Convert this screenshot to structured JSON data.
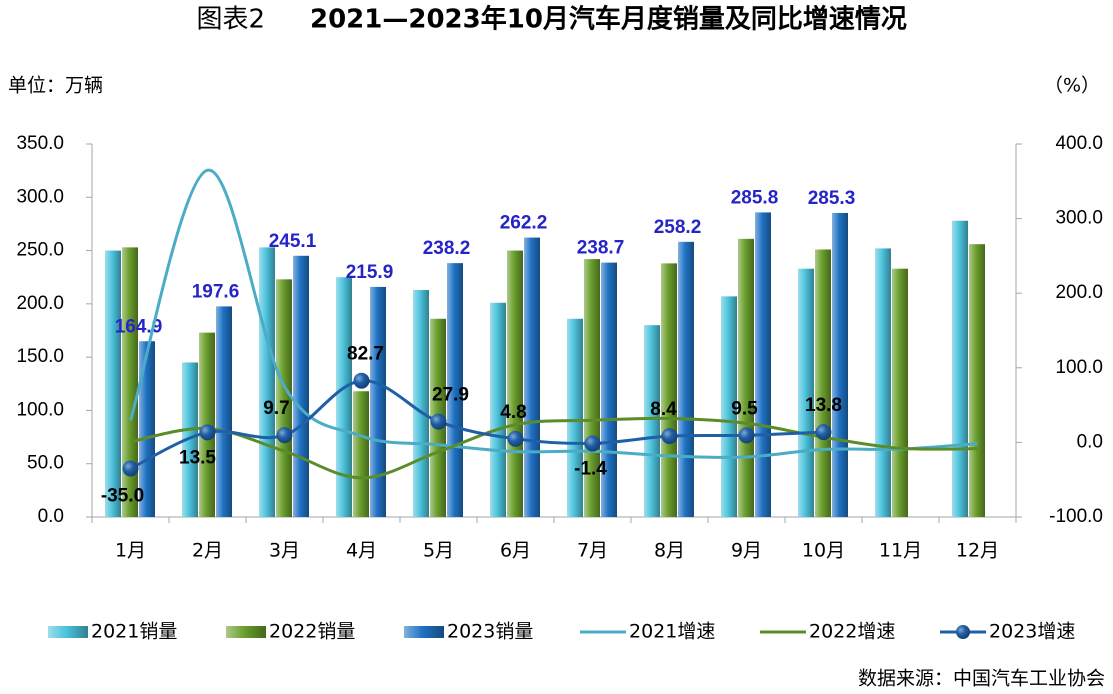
{
  "chart_data": {
    "type": "bar",
    "figure_label": "图表2",
    "title": "2021—2023年10月汽车月度销量及同比增速情况",
    "unit_left": "单位：万辆",
    "unit_right": "（%）",
    "source": "数据来源：中国汽车工业协会",
    "categories": [
      "1月",
      "2月",
      "3月",
      "4月",
      "5月",
      "6月",
      "7月",
      "8月",
      "9月",
      "10月",
      "11月",
      "12月"
    ],
    "series": [
      {
        "name": "2021销量",
        "type": "bar",
        "color": "#4cc3dc",
        "values": [
          250,
          145,
          253,
          225,
          213,
          201,
          186,
          180,
          207,
          233,
          252,
          278
        ]
      },
      {
        "name": "2022销量",
        "type": "bar",
        "color": "#6a9e2c",
        "values": [
          253,
          173,
          223,
          118,
          186,
          250,
          242,
          238,
          261,
          251,
          233,
          256
        ]
      },
      {
        "name": "2023销量",
        "type": "bar",
        "color": "#1f72c4",
        "values": [
          164.9,
          197.6,
          245.1,
          215.9,
          238.2,
          262.2,
          238.7,
          258.2,
          285.8,
          285.3,
          null,
          null
        ]
      },
      {
        "name": "2021增速",
        "type": "line",
        "axis": "y2",
        "color": "#4bacc6",
        "values": [
          29.5,
          364.8,
          74.9,
          8.6,
          -3.1,
          -12.4,
          -11.9,
          -18.1,
          -19.6,
          -9.4,
          -9.1,
          -1.6
        ]
      },
      {
        "name": "2022增速",
        "type": "line",
        "axis": "y2",
        "color": "#5b8c2a",
        "values": [
          0.9,
          18.7,
          -11.7,
          -47.6,
          -12.6,
          23.8,
          29.7,
          32.1,
          25.7,
          6.9,
          -7.9,
          -8.4
        ]
      },
      {
        "name": "2023增速",
        "type": "line",
        "axis": "y2",
        "color": "#1f5fa8",
        "markers": true,
        "values": [
          -35.0,
          13.5,
          9.7,
          82.7,
          27.9,
          4.8,
          -1.4,
          8.4,
          9.5,
          13.8,
          null,
          null
        ],
        "value_labels": [
          "-35.0",
          "13.5",
          "9.7",
          "82.7",
          "27.9",
          "4.8",
          "-1.4",
          "8.4",
          "9.5",
          "13.8",
          null,
          null
        ]
      }
    ],
    "ylim": [
      0,
      350
    ],
    "yticks": [
      {
        "value": 0,
        "label": "0.0"
      },
      {
        "value": 50,
        "label": "50.0"
      },
      {
        "value": 100,
        "label": "100.0"
      },
      {
        "value": 150,
        "label": "150.0"
      },
      {
        "value": 200,
        "label": "200.0"
      },
      {
        "value": 250,
        "label": "250.0"
      },
      {
        "value": 300,
        "label": "300.0"
      },
      {
        "value": 350,
        "label": "350.0"
      }
    ],
    "y2lim": [
      -100,
      400
    ],
    "y2ticks": [
      {
        "value": -100,
        "label": "-100.0"
      },
      {
        "value": 0,
        "label": "0.0"
      },
      {
        "value": 100,
        "label": "100.0"
      },
      {
        "value": 200,
        "label": "200.0"
      },
      {
        "value": 300,
        "label": "300.0"
      },
      {
        "value": 400,
        "label": "400.0"
      }
    ],
    "grid": false
  }
}
